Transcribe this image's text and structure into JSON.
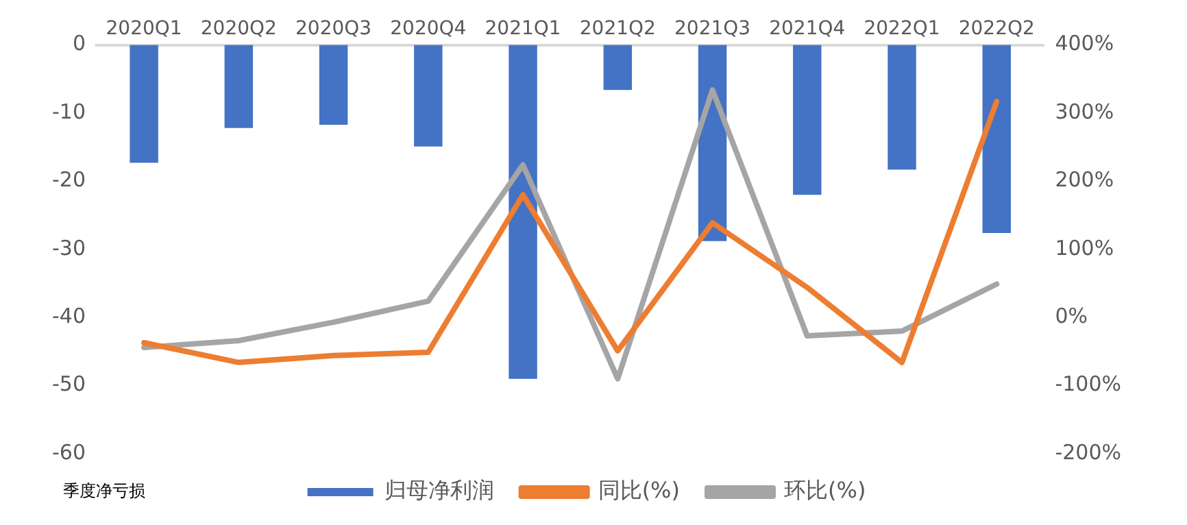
{
  "chart_data": {
    "type": "bar",
    "categories": [
      "2020Q1",
      "2020Q2",
      "2020Q3",
      "2020Q4",
      "2021Q1",
      "2021Q2",
      "2021Q3",
      "2021Q4",
      "2022Q1",
      "2022Q2"
    ],
    "series": [
      {
        "name": "归母净利润",
        "color": "#4472c4",
        "values": [
          -17.3,
          -12.2,
          -11.7,
          -14.9,
          -49,
          -6.6,
          -28.8,
          -22,
          -18.3,
          -27.6
        ]
      },
      {
        "name": "同比(%)",
        "type": "line",
        "axis": "y2",
        "color": "#ed7d31",
        "values": [
          -37,
          -66,
          -56,
          -51,
          180,
          -49,
          139,
          44,
          -66,
          317
        ]
      },
      {
        "name": "环比(%)",
        "type": "line",
        "axis": "y2",
        "color": "#a5a5a5",
        "values": [
          -44,
          -34,
          -7,
          24,
          224,
          -90,
          334,
          -27,
          -20,
          49
        ]
      }
    ],
    "ylim": [
      -60,
      0
    ],
    "yticks": [
      -60,
      -50,
      -40,
      -30,
      -20,
      -10,
      0
    ],
    "y2lim": [
      -200,
      400
    ],
    "y2ticks": [
      {
        "value": -200,
        "label": "-200%"
      },
      {
        "value": -100,
        "label": "-100%"
      },
      {
        "value": 0,
        "label": "0%"
      },
      {
        "value": 100,
        "label": "100%"
      },
      {
        "value": 200,
        "label": "200%"
      },
      {
        "value": 300,
        "label": "300%"
      },
      {
        "value": 400,
        "label": "400%"
      }
    ],
    "grid": false,
    "legend": "bottom",
    "marker": "none",
    "line_style": "solid",
    "annotations": [
      "季度净亏损"
    ]
  }
}
